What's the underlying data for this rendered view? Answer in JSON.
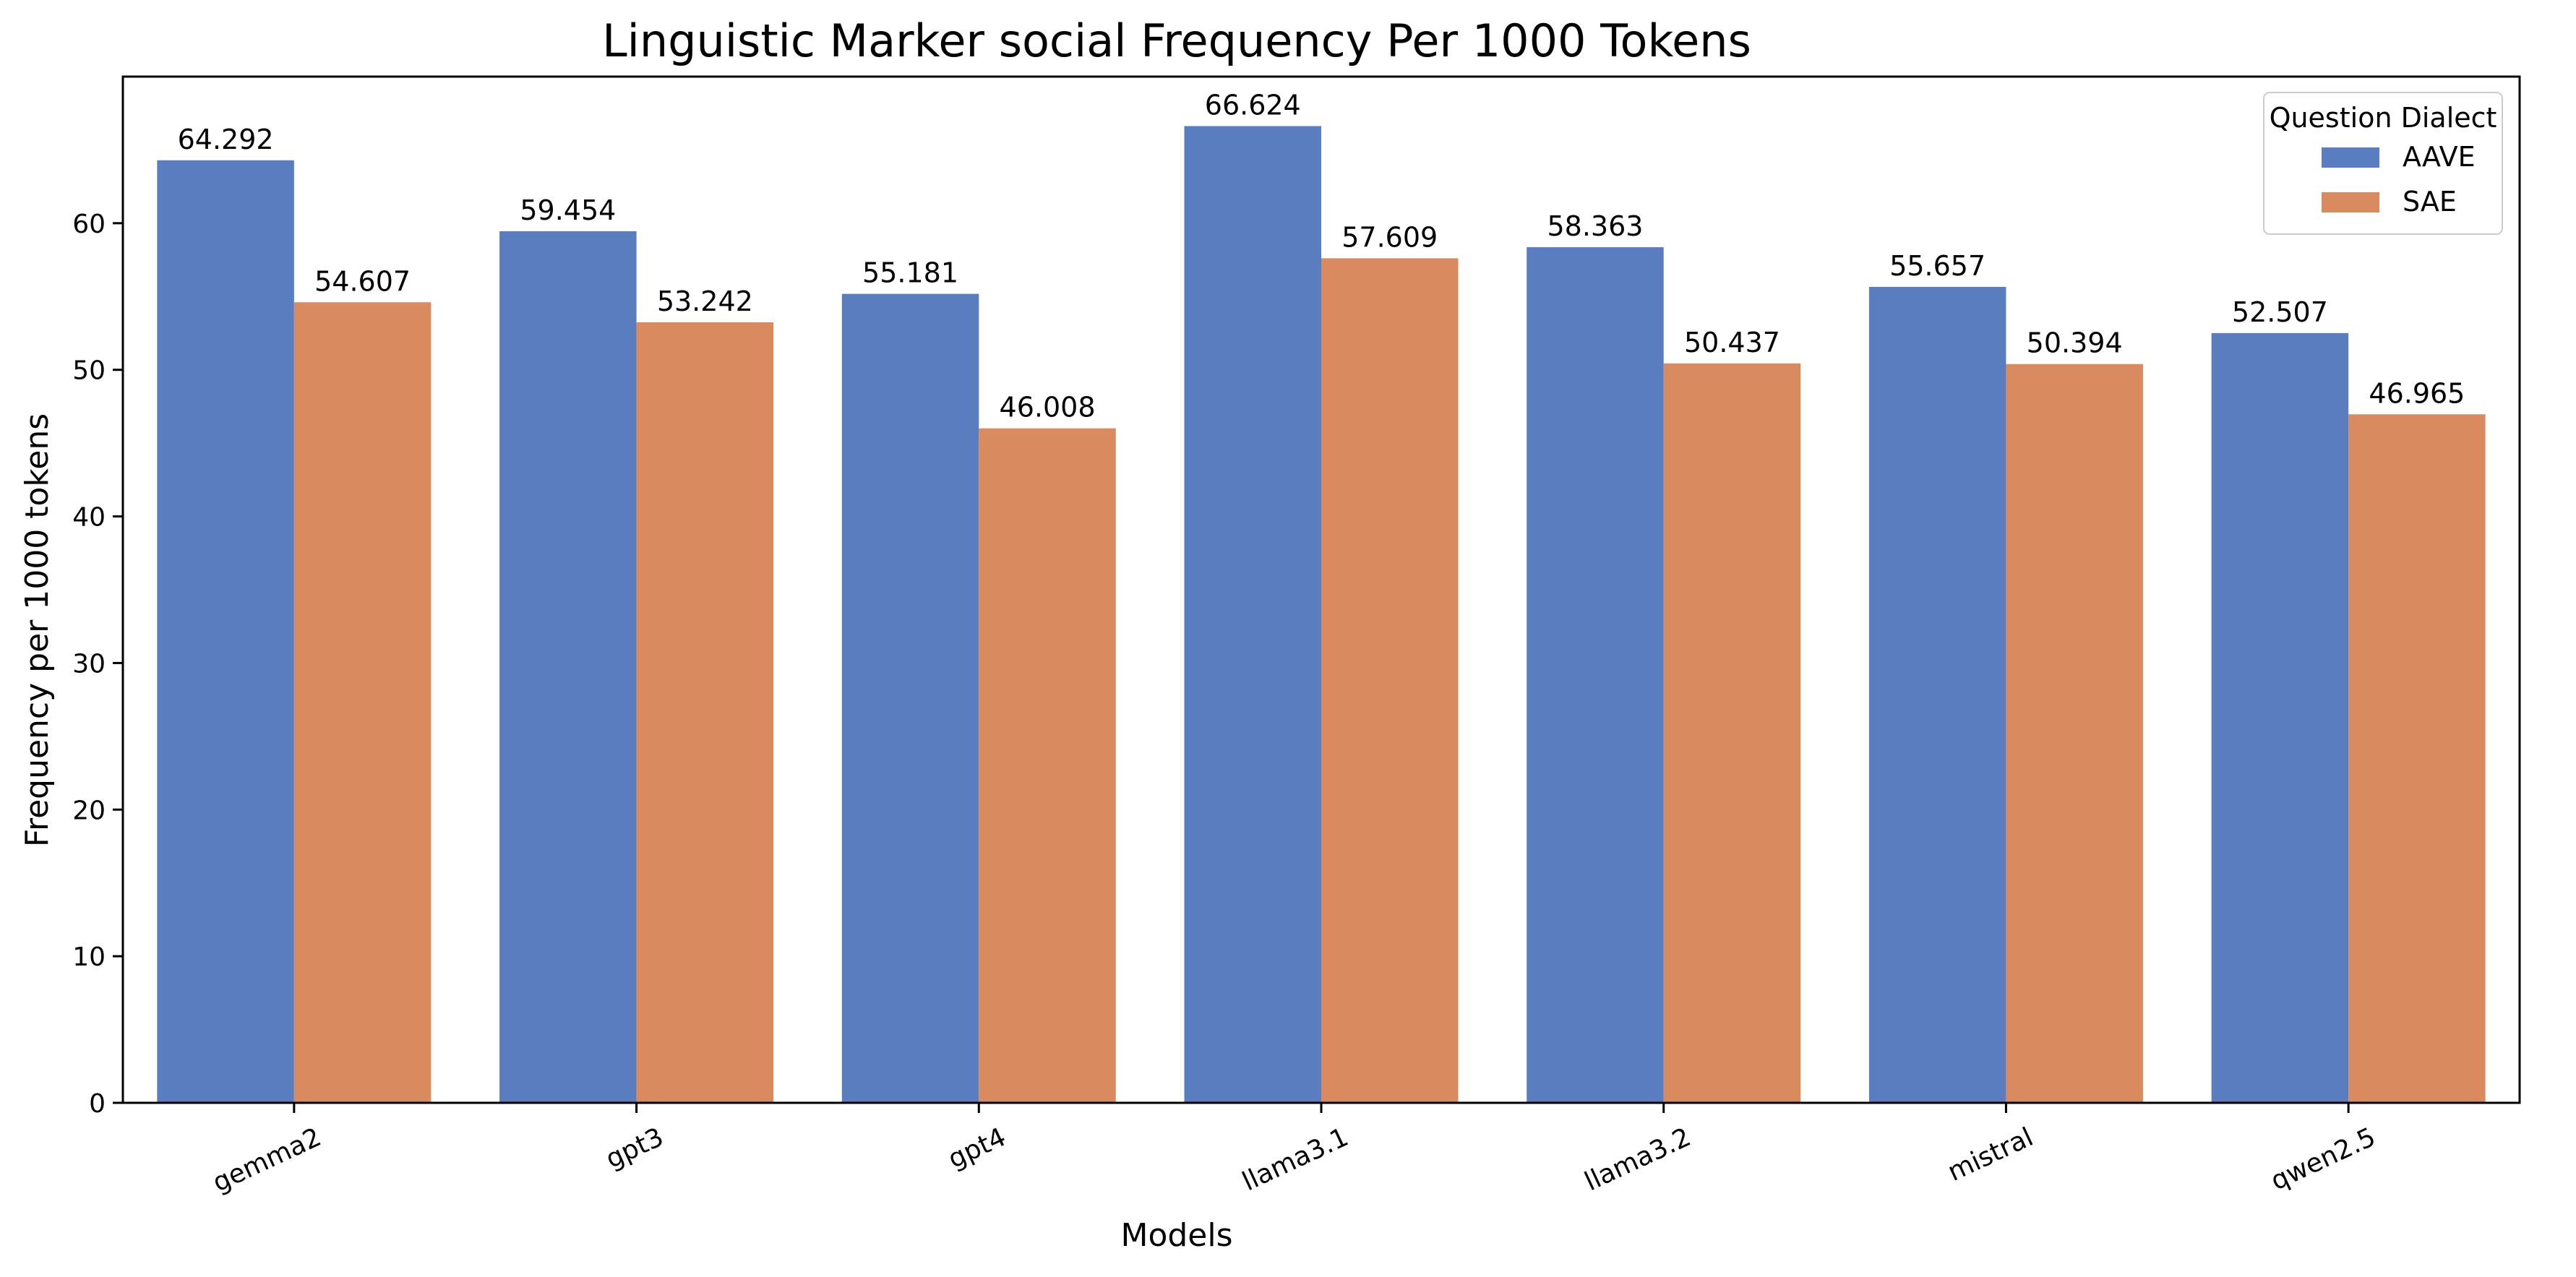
{
  "chart_data": {
    "type": "bar",
    "title": "Linguistic Marker social Frequency Per 1000 Tokens",
    "xlabel": "Models",
    "ylabel": "Frequency per 1000 tokens",
    "categories": [
      "gemma2",
      "gpt3",
      "gpt4",
      "llama3.1",
      "llama3.2",
      "mistral",
      "qwen2.5"
    ],
    "series": [
      {
        "name": "AAVE",
        "color": "#5a7dbf",
        "values": [
          64.292,
          59.454,
          55.181,
          66.624,
          58.363,
          55.657,
          52.507
        ],
        "labels": [
          "64.292",
          "59.454",
          "55.181",
          "66.624",
          "58.363",
          "55.657",
          "52.507"
        ]
      },
      {
        "name": "SAE",
        "color": "#d98b5f",
        "values": [
          54.607,
          53.242,
          46.008,
          57.609,
          50.437,
          50.394,
          46.965
        ],
        "labels": [
          "54.607",
          "53.242",
          "46.008",
          "57.609",
          "50.437",
          "50.394",
          "46.965"
        ]
      }
    ],
    "ylim": [
      0,
      70
    ],
    "yticks": [
      0,
      10,
      20,
      30,
      40,
      50,
      60
    ],
    "ytick_labels": [
      "0",
      "10",
      "20",
      "30",
      "40",
      "50",
      "60"
    ],
    "legend": {
      "title": "Question Dialect",
      "position": "top-right"
    },
    "grid": false
  }
}
